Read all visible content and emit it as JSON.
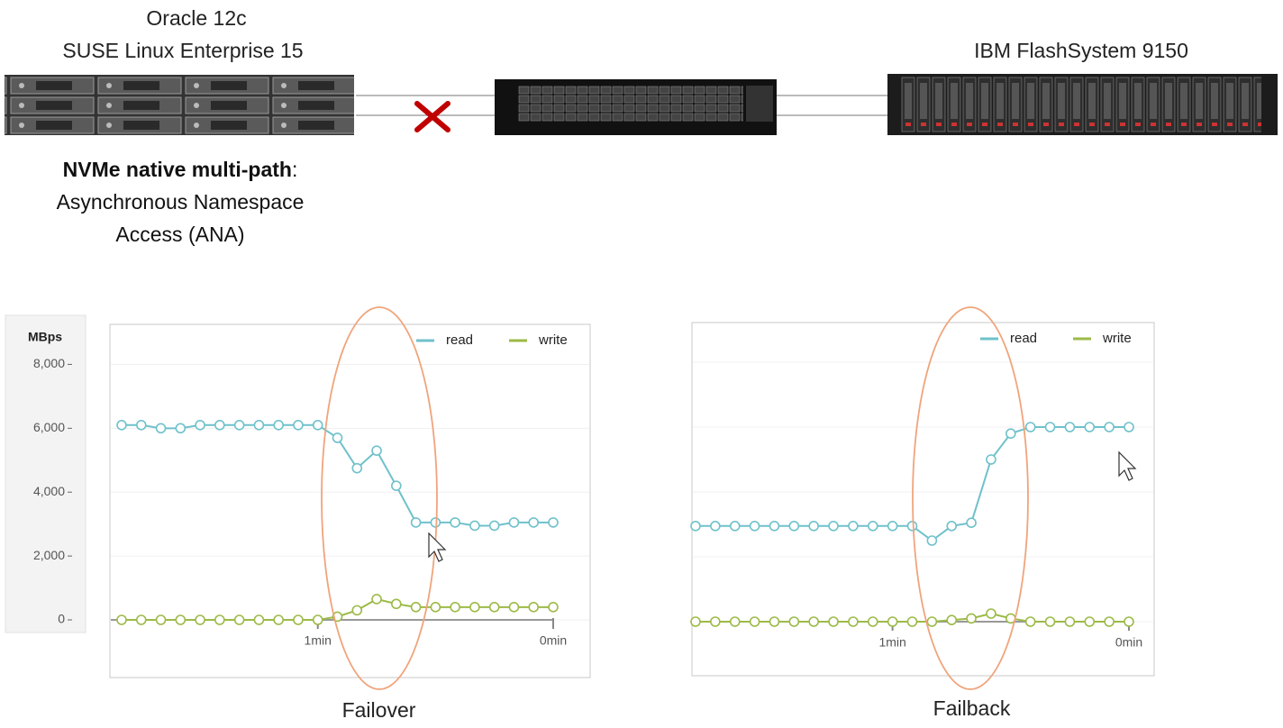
{
  "diagram": {
    "host": [
      "Oracle 12c",
      "SUSE Linux Enterprise 15"
    ],
    "storage": "IBM FlashSystem 9150",
    "description": {
      "term": "NVMe native multi-path",
      "detail": ": Asynchronous Namespace Access (ANA)"
    }
  },
  "chart_data": [
    {
      "type": "line",
      "title": "Failover",
      "ylabel": "MBps",
      "categories": [
        null,
        null,
        null,
        null,
        null,
        null,
        null,
        null,
        null,
        null,
        "1min",
        null,
        null,
        null,
        null,
        null,
        null,
        null,
        null,
        null,
        null,
        null,
        "0min"
      ],
      "series": [
        {
          "name": "read",
          "color": "#6fc1cb",
          "values": [
            6100,
            6100,
            6000,
            6000,
            6100,
            6100,
            6100,
            6100,
            6100,
            6100,
            6100,
            5700,
            4750,
            5300,
            4200,
            3050,
            3050,
            3050,
            2950,
            2950,
            3050,
            3050,
            3050
          ]
        },
        {
          "name": "write",
          "color": "#9cba47",
          "values": [
            0,
            0,
            0,
            0,
            0,
            0,
            0,
            0,
            0,
            0,
            0,
            100,
            300,
            650,
            500,
            400,
            400,
            400,
            400,
            400,
            400,
            400,
            400
          ]
        }
      ],
      "ylim": [
        0,
        9000
      ],
      "yticks": [
        0,
        {
          "value": 2000,
          "label": "2,000"
        },
        {
          "value": 4000,
          "label": "4,000"
        },
        {
          "value": 6000,
          "label": "6,000"
        },
        {
          "value": 8000,
          "label": "8,000"
        }
      ],
      "grid": true,
      "legend": "top-right"
    },
    {
      "type": "line",
      "title": "Failback",
      "categories": [
        null,
        null,
        null,
        null,
        null,
        null,
        null,
        null,
        null,
        null,
        "1min",
        null,
        null,
        null,
        null,
        null,
        null,
        null,
        null,
        null,
        null,
        null,
        "0min"
      ],
      "series": [
        {
          "name": "read",
          "color": "#6fc1cb",
          "values": [
            2950,
            2950,
            2950,
            2950,
            2950,
            2950,
            2950,
            2950,
            2950,
            2950,
            2950,
            2950,
            2500,
            2950,
            3050,
            5000,
            5800,
            6000,
            6000,
            6000,
            6000,
            6000,
            6000
          ]
        },
        {
          "name": "write",
          "color": "#9cba47",
          "values": [
            0,
            0,
            0,
            0,
            0,
            0,
            0,
            0,
            0,
            0,
            0,
            0,
            0,
            50,
            100,
            250,
            100,
            0,
            0,
            0,
            0,
            0,
            0
          ]
        }
      ],
      "ylim": [
        0,
        9000
      ],
      "grid": true,
      "legend": "top-right"
    }
  ]
}
